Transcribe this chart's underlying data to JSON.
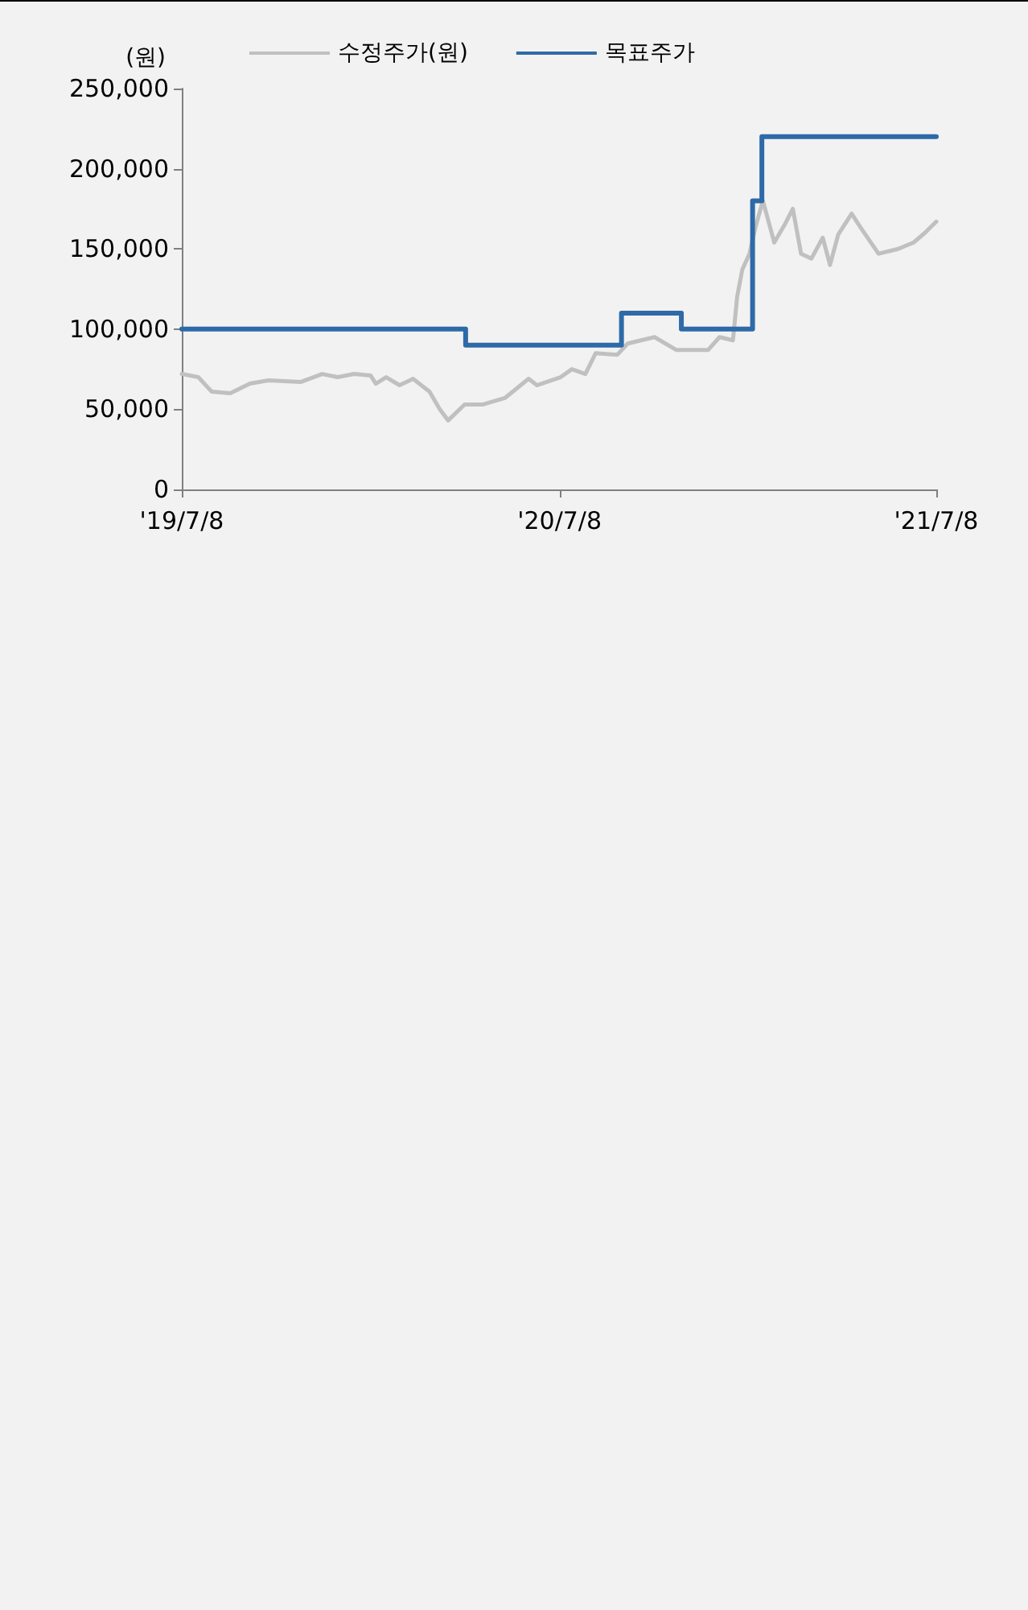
{
  "chart_data": {
    "type": "line",
    "ylabel": "(원)",
    "legend": "top",
    "grid": false,
    "marker": "none",
    "xlim": [
      "2019-07-08",
      "2021-07-08"
    ],
    "xticks": [
      {
        "value": "2019-07-08",
        "label": "'19/7/8"
      },
      {
        "value": "2020-07-08",
        "label": "'20/7/8"
      },
      {
        "value": "2021-07-08",
        "label": "'21/7/8"
      }
    ],
    "ylim": [
      0,
      250000
    ],
    "yticks": [
      {
        "value": 0,
        "label": "0"
      },
      {
        "value": 50000,
        "label": "50,000"
      },
      {
        "value": 100000,
        "label": "100,000"
      },
      {
        "value": 150000,
        "label": "150,000"
      },
      {
        "value": 200000,
        "label": "200,000"
      },
      {
        "value": 250000,
        "label": "250,000"
      }
    ],
    "series": [
      {
        "name": "수정주가(원)",
        "color": "#c0c0c0",
        "x": [
          "2019-07-08",
          "2019-07-24",
          "2019-08-06",
          "2019-08-24",
          "2019-09-12",
          "2019-09-30",
          "2019-10-31",
          "2019-11-21",
          "2019-12-06",
          "2019-12-22",
          "2020-01-07",
          "2020-01-12",
          "2020-01-22",
          "2020-02-04",
          "2020-02-17",
          "2020-03-04",
          "2020-03-14",
          "2020-03-22",
          "2020-04-07",
          "2020-04-25",
          "2020-05-16",
          "2020-06-08",
          "2020-06-16",
          "2020-07-09",
          "2020-07-20",
          "2020-08-02",
          "2020-08-12",
          "2020-09-02",
          "2020-09-12",
          "2020-10-08",
          "2020-10-29",
          "2020-11-29",
          "2020-12-10",
          "2020-12-23",
          "2020-12-27",
          "2021-01-01",
          "2021-01-08",
          "2021-01-14",
          "2021-01-21",
          "2021-02-01",
          "2021-02-11",
          "2021-02-19",
          "2021-02-27",
          "2021-03-09",
          "2021-03-20",
          "2021-03-27",
          "2021-04-04",
          "2021-04-17",
          "2021-04-25",
          "2021-05-13",
          "2021-06-01",
          "2021-06-16",
          "2021-06-27",
          "2021-07-08"
        ],
        "values": [
          72000,
          70000,
          61000,
          60000,
          66000,
          68000,
          67000,
          72000,
          70000,
          72000,
          71000,
          66000,
          70000,
          65000,
          69000,
          61000,
          50000,
          43000,
          53000,
          53000,
          57000,
          69000,
          65000,
          70000,
          75000,
          72000,
          85000,
          84000,
          91000,
          95000,
          87000,
          87000,
          95000,
          93000,
          120000,
          137000,
          147000,
          164000,
          180000,
          154000,
          165000,
          175000,
          147000,
          144000,
          157000,
          140000,
          159000,
          172000,
          164000,
          147000,
          150000,
          154000,
          160000,
          167000
        ]
      },
      {
        "name": "목표주가",
        "type": "step",
        "color": "#2e6aa8",
        "x": [
          "2019-07-08",
          "2020-04-08",
          "2020-09-06",
          "2020-11-03",
          "2021-01-11",
          "2021-01-20",
          "2021-07-08"
        ],
        "values": [
          100000,
          90000,
          110000,
          100000,
          180000,
          220000,
          220000
        ]
      }
    ]
  }
}
